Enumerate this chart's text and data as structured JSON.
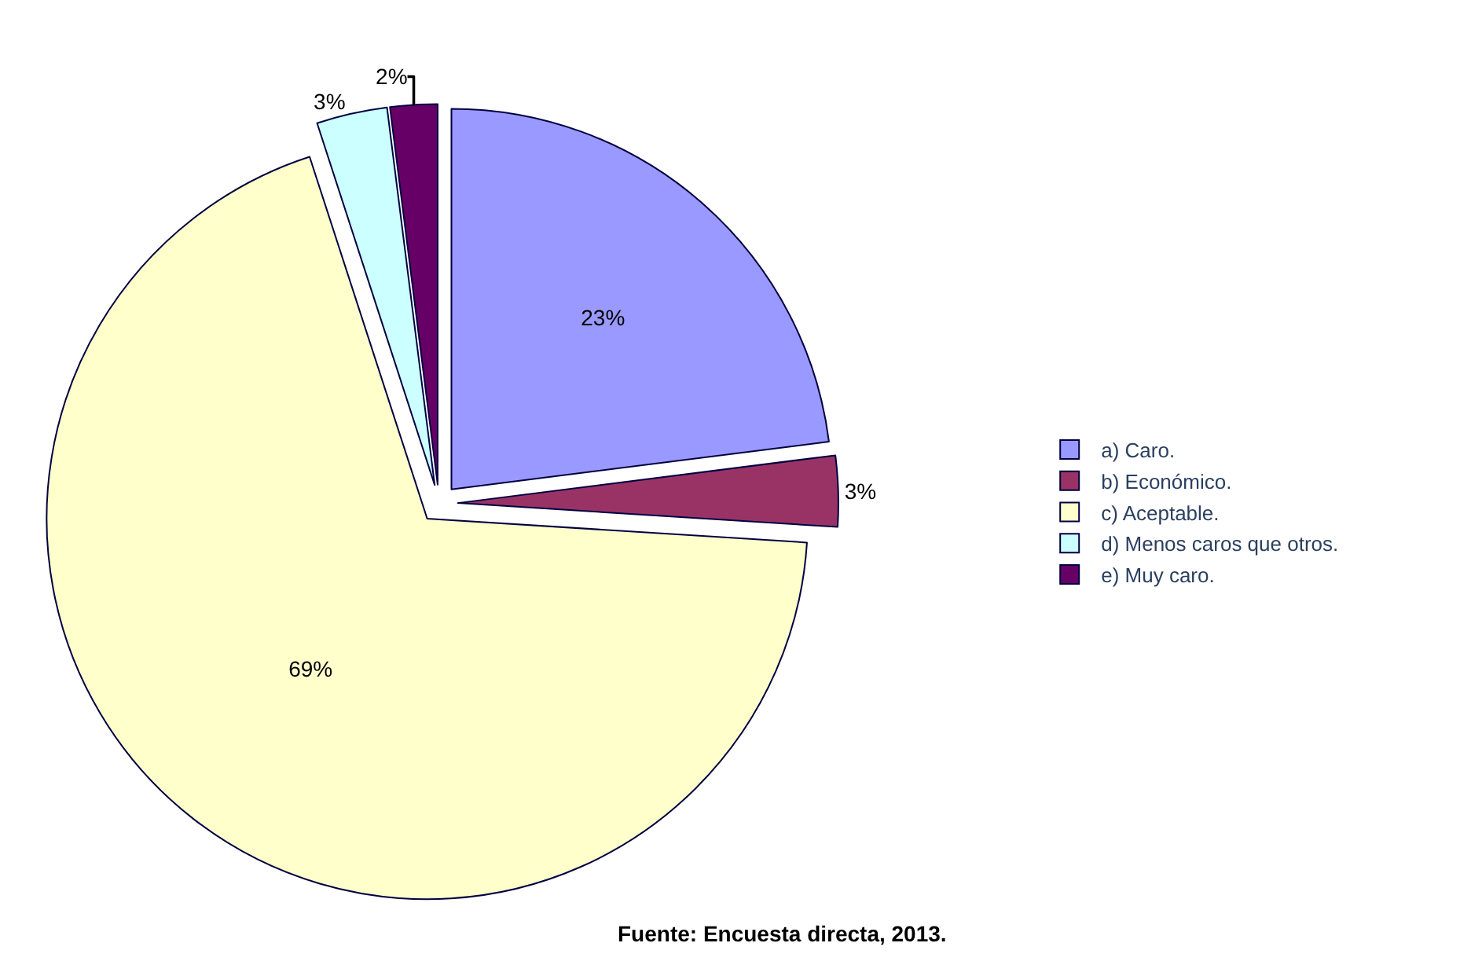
{
  "chart_data": {
    "type": "pie",
    "categories": [
      "a) Caro.",
      "b) Económico.",
      "c) Aceptable.",
      "d) Menos caros que otros.",
      "e) Muy caro."
    ],
    "values": [
      23,
      3,
      69,
      3,
      2
    ],
    "value_labels": [
      "23%",
      "3%",
      "69%",
      "3%",
      "2%"
    ],
    "colors": [
      "#9999ff",
      "#993366",
      "#ffffcc",
      "#ccffff",
      "#660066"
    ],
    "legend": "right",
    "annotations": [
      "Fuente: Encuesta directa, 2013."
    ]
  }
}
